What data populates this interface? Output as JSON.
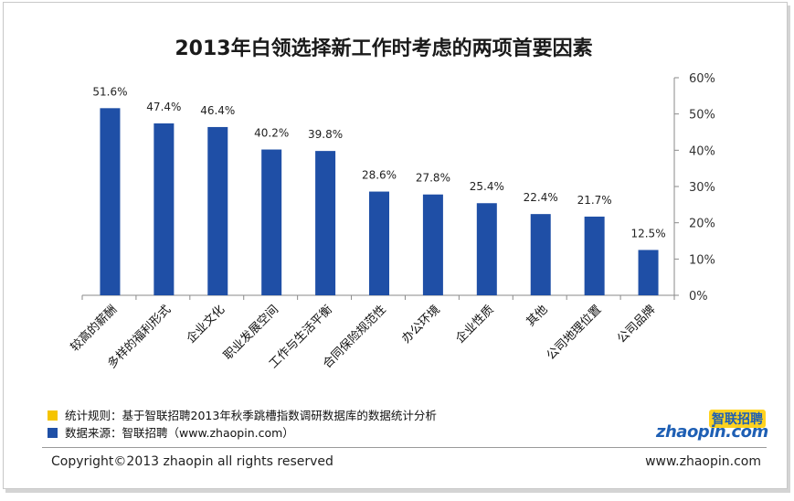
{
  "chart_data": {
    "type": "bar",
    "title": "2013年白领选择新工作时考虑的两项首要因素",
    "categories": [
      "较高的薪酬",
      "多样的福利形式",
      "企业文化",
      "职业发展空间",
      "工作与生活平衡",
      "合同保险规范性",
      "办公环境",
      "企业性质",
      "其他",
      "公司地理位置",
      "公司品牌"
    ],
    "values": [
      51.6,
      47.4,
      46.4,
      40.2,
      39.8,
      28.6,
      27.8,
      25.4,
      22.4,
      21.7,
      12.5
    ],
    "value_labels": [
      "51.6%",
      "47.4%",
      "46.4%",
      "40.2%",
      "39.8%",
      "28.6%",
      "27.8%",
      "25.4%",
      "22.4%",
      "21.7%",
      "12.5%"
    ],
    "yaxis_side": "right",
    "ylim": [
      0,
      60
    ],
    "yticks": [
      0,
      10,
      20,
      30,
      40,
      50,
      60
    ],
    "ytick_labels": [
      "0%",
      "10%",
      "20%",
      "30%",
      "40%",
      "50%",
      "60%"
    ],
    "grid": false,
    "bar_color": "#1f4fa6"
  },
  "notes": [
    {
      "color": "#f5c400",
      "text": "统计规则：基于智联招聘2013年秋季跳槽指数调研数据库的数据统计分析"
    },
    {
      "color": "#1f4fa6",
      "text": "数据来源：智联招聘（www.zhaopin.com）"
    }
  ],
  "footer": {
    "copyright": "Copyright©2013 zhaopin all rights reserved",
    "url": "www.zhaopin.com"
  },
  "logo": {
    "cn": "智联招聘",
    "en": "zhaopin.com"
  }
}
